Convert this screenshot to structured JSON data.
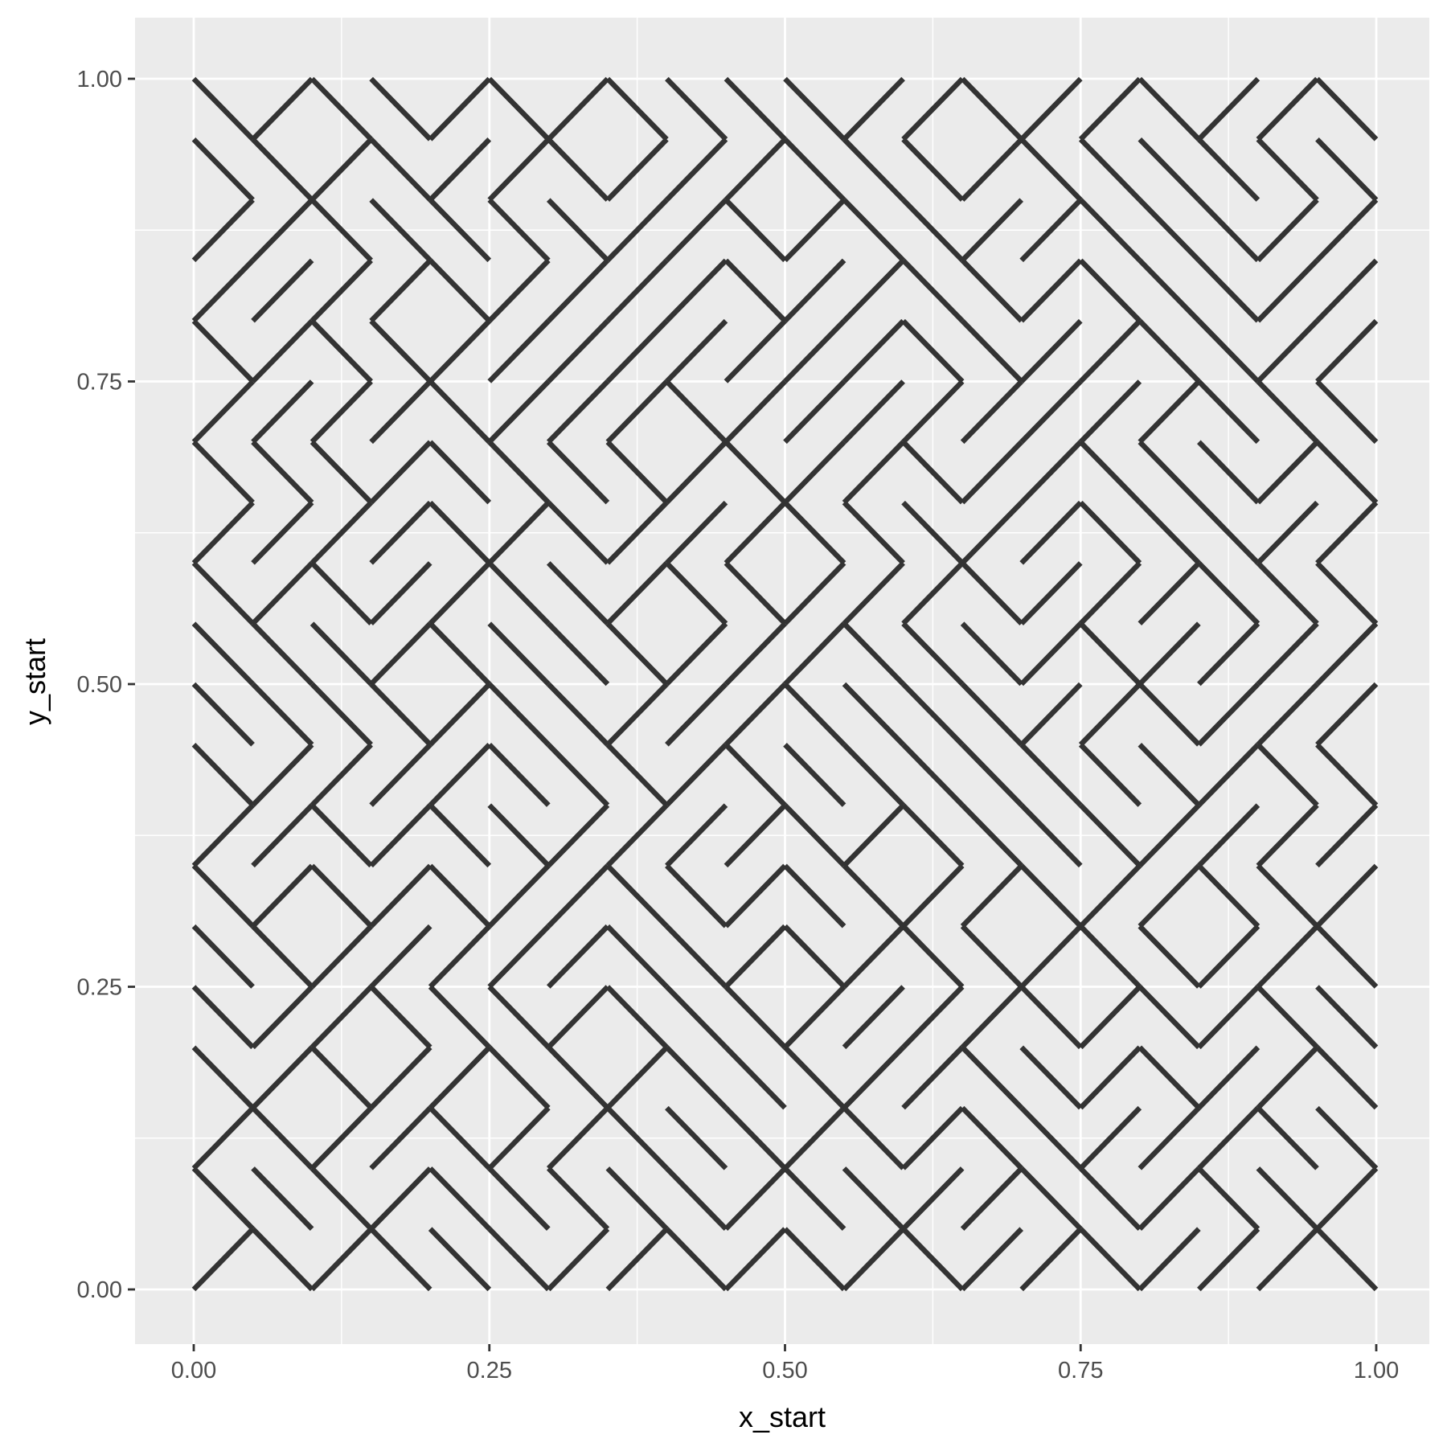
{
  "chart_data": {
    "type": "line",
    "title": "",
    "xlabel": "x_start",
    "ylabel": "y_start",
    "xlim": [
      -0.05,
      1.05
    ],
    "ylim": [
      -0.05,
      1.05
    ],
    "x_ticks": [
      0,
      0.25,
      0.5,
      0.75,
      1
    ],
    "x_tick_labels": [
      "0.00",
      "0.25",
      "0.50",
      "0.75",
      "1.00"
    ],
    "y_ticks": [
      0,
      0.25,
      0.5,
      0.75,
      1
    ],
    "y_tick_labels": [
      "0.00",
      "0.25",
      "0.50",
      "0.75",
      "1.00"
    ],
    "grid": true,
    "line_color": "#333333",
    "panel_background": "#ebebeb",
    "grid_color": "#ffffff",
    "description": "Diagonal maze pattern: each cell of size 0.05 contains one diagonal segment from (x_start, y_start)",
    "segments_approx": [
      [
        0,
        1,
        0.05,
        0.95
      ],
      [
        0.05,
        0.95,
        0.1,
        1
      ],
      [
        0.1,
        1,
        0.15,
        0.95
      ],
      [
        0.15,
        1,
        0.2,
        0.95
      ],
      [
        0.2,
        0.95,
        0.25,
        1
      ],
      [
        0.25,
        1,
        0.3,
        0.95
      ],
      [
        0.3,
        0.95,
        0.35,
        1
      ],
      [
        0.35,
        1,
        0.4,
        0.95
      ],
      [
        0.4,
        1,
        0.45,
        0.95
      ],
      [
        0.45,
        1,
        0.5,
        0.95
      ],
      [
        0.5,
        1,
        0.55,
        0.95
      ],
      [
        0.55,
        0.95,
        0.6,
        1
      ],
      [
        0.6,
        0.95,
        0.65,
        1
      ],
      [
        0.65,
        1,
        0.7,
        0.95
      ],
      [
        0.7,
        0.95,
        0.75,
        1
      ],
      [
        0.75,
        0.95,
        0.8,
        1
      ],
      [
        0.8,
        1,
        0.85,
        0.95
      ],
      [
        0.85,
        0.95,
        0.9,
        1
      ],
      [
        0.9,
        0.95,
        0.95,
        1
      ],
      [
        0.95,
        1,
        1,
        0.95
      ],
      [
        0,
        0,
        0.05,
        0.05
      ],
      [
        0.05,
        0.05,
        0.1,
        0
      ],
      [
        0.1,
        0,
        0.15,
        0.05
      ],
      [
        0.15,
        0.05,
        0.2,
        0
      ],
      [
        0.2,
        0.05,
        0.25,
        0
      ],
      [
        0.3,
        0,
        0.35,
        0.05
      ],
      [
        0.35,
        0,
        0.4,
        0.05
      ],
      [
        0.4,
        0.05,
        0.45,
        0
      ],
      [
        0.45,
        0,
        0.5,
        0.05
      ],
      [
        0.5,
        0.05,
        0.55,
        0
      ],
      [
        0.55,
        0,
        0.6,
        0.05
      ],
      [
        0.6,
        0.05,
        0.65,
        0
      ],
      [
        0.65,
        0,
        0.7,
        0.05
      ],
      [
        0.7,
        0,
        0.75,
        0.05
      ],
      [
        0.75,
        0.05,
        0.8,
        0
      ],
      [
        0.8,
        0,
        0.85,
        0.05
      ],
      [
        0.85,
        0,
        0.9,
        0.05
      ],
      [
        0.9,
        0,
        0.95,
        0.05
      ],
      [
        0.95,
        0.05,
        1,
        0
      ]
    ]
  }
}
